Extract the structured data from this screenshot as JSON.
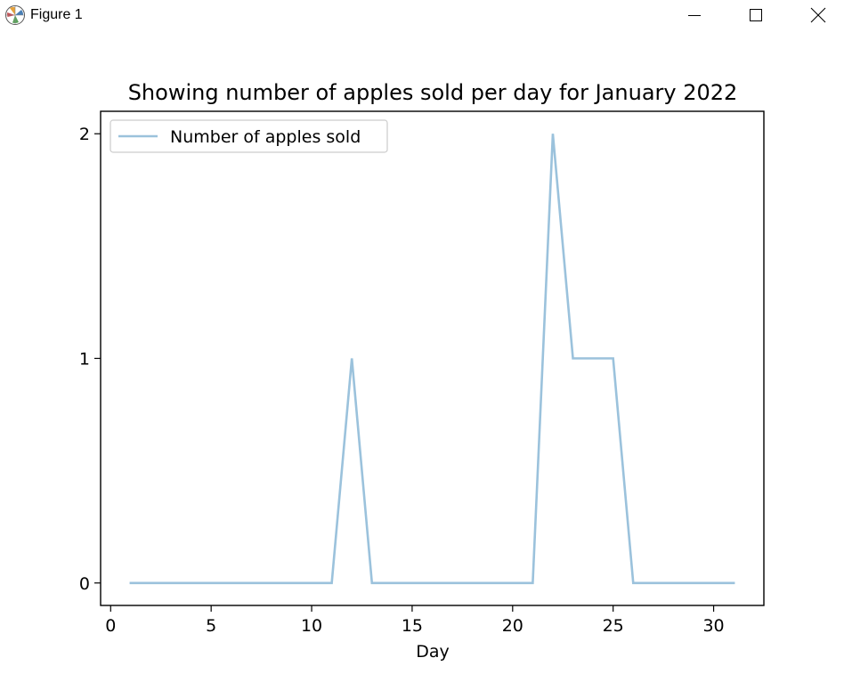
{
  "window": {
    "title": "Figure 1",
    "icon": "matplotlib-figure-icon",
    "controls": [
      "minimize-icon",
      "maximize-icon",
      "close-icon"
    ]
  },
  "chart_data": {
    "type": "line",
    "title": "Showing number of apples sold per day for January 2022",
    "xlabel": "Day",
    "ylabel": "",
    "xlim": [
      -0.5,
      32.5
    ],
    "ylim": [
      -0.1,
      2.1
    ],
    "x_ticks": [
      0,
      5,
      10,
      15,
      20,
      25,
      30
    ],
    "y_ticks": [
      0,
      1,
      2
    ],
    "grid": false,
    "legend_position": "upper left",
    "series": [
      {
        "name": "Number of apples sold",
        "color": "#9bc2dc",
        "x": [
          1,
          2,
          3,
          4,
          5,
          6,
          7,
          8,
          9,
          10,
          11,
          12,
          13,
          14,
          15,
          16,
          17,
          18,
          19,
          20,
          21,
          22,
          23,
          24,
          25,
          26,
          27,
          28,
          29,
          30,
          31
        ],
        "values": [
          0,
          0,
          0,
          0,
          0,
          0,
          0,
          0,
          0,
          0,
          0,
          1,
          0,
          0,
          0,
          0,
          0,
          0,
          0,
          0,
          0,
          2,
          1,
          1,
          1,
          0,
          0,
          0,
          0,
          0,
          0
        ]
      }
    ]
  }
}
